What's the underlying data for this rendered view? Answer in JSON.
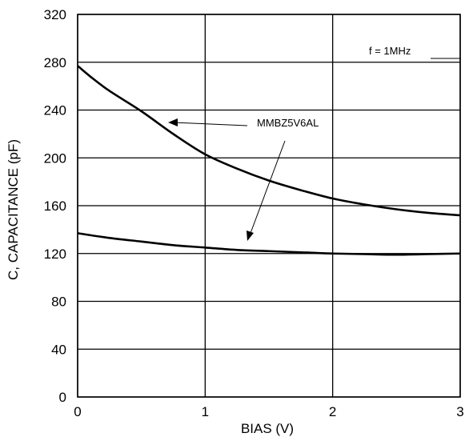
{
  "chart_data": {
    "type": "line",
    "xlabel": "BIAS (V)",
    "ylabel": "C, CAPACITANCE (pF)",
    "xlim": [
      0,
      3
    ],
    "ylim": [
      0,
      320
    ],
    "xticks": [
      "0",
      "1",
      "2",
      "3"
    ],
    "yticks": [
      "0",
      "40",
      "80",
      "120",
      "160",
      "200",
      "240",
      "280",
      "320"
    ],
    "grid": true,
    "annotations": {
      "frequency": "f = 1MHz",
      "device": "MMBZ5V6AL"
    },
    "series": [
      {
        "x": [
          0,
          0.1,
          0.25,
          0.5,
          0.75,
          1.0,
          1.25,
          1.5,
          1.75,
          2.0,
          2.25,
          2.5,
          2.75,
          3.0
        ],
        "y": [
          277,
          268,
          256,
          239,
          220,
          203,
          191,
          181,
          173,
          166,
          161,
          157,
          154,
          152
        ]
      },
      {
        "x": [
          0,
          0.25,
          0.5,
          0.75,
          1.0,
          1.25,
          1.5,
          1.75,
          2.0,
          2.25,
          2.5,
          2.75,
          3.0
        ],
        "y": [
          137,
          133,
          130,
          127,
          125,
          123,
          122,
          121,
          120,
          119.5,
          119,
          119.5,
          120
        ]
      }
    ]
  }
}
